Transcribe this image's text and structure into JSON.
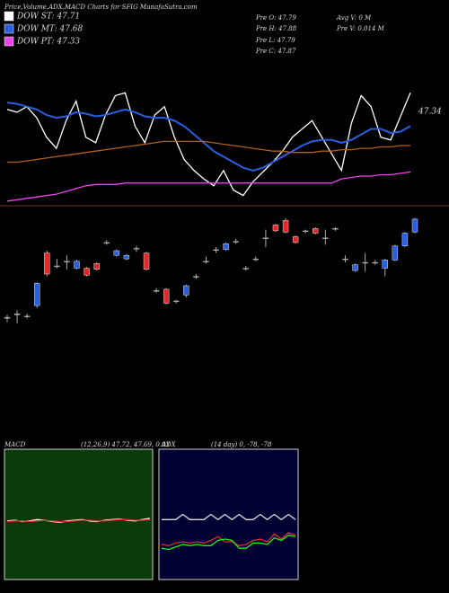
{
  "chart_data": [
    {
      "type": "line",
      "title": "Price,Volume,ADX,MACD Charts for SFIG MunafaSutra.com",
      "annotations": [
        "Pre O: 47.79",
        "Pre H: 47.88",
        "Pre L: 47.79",
        "Pre C: 47.87",
        "Avg V: 0 M",
        "Pre V: 0.014 M",
        "47.34"
      ],
      "ylim": [
        46.8,
        47.9
      ],
      "series": [
        {
          "name": "DOW ST: 47.71",
          "color": "#ffffff",
          "values": [
            47.5,
            47.48,
            47.52,
            47.44,
            47.3,
            47.22,
            47.42,
            47.56,
            47.3,
            47.26,
            47.46,
            47.6,
            47.62,
            47.38,
            47.26,
            47.46,
            47.52,
            47.3,
            47.14,
            47.06,
            47.0,
            46.95,
            47.06,
            46.92,
            46.88,
            46.98,
            47.05,
            47.12,
            47.2,
            47.3,
            47.36,
            47.42,
            47.3,
            47.18,
            47.06,
            47.4,
            47.6,
            47.52,
            47.3,
            47.28,
            47.45,
            47.62
          ]
        },
        {
          "name": "DOW MT: 47.68",
          "color": "#2a5fe0",
          "values": [
            47.55,
            47.54,
            47.52,
            47.5,
            47.46,
            47.44,
            47.45,
            47.48,
            47.47,
            47.45,
            47.46,
            47.48,
            47.5,
            47.48,
            47.45,
            47.44,
            47.44,
            47.42,
            47.38,
            47.32,
            47.26,
            47.2,
            47.16,
            47.12,
            47.08,
            47.06,
            47.08,
            47.12,
            47.16,
            47.2,
            47.24,
            47.27,
            47.28,
            47.28,
            47.26,
            47.28,
            47.32,
            47.36,
            47.36,
            47.33,
            47.34,
            47.38
          ]
        },
        {
          "name": "DOW PT: 47.33",
          "color": "#ee44ee",
          "values": [
            46.84,
            46.85,
            46.86,
            46.87,
            46.88,
            46.89,
            46.91,
            46.93,
            46.95,
            46.96,
            46.96,
            46.96,
            46.97,
            46.97,
            46.97,
            46.97,
            46.97,
            46.97,
            46.97,
            46.97,
            46.97,
            46.97,
            46.97,
            46.97,
            46.97,
            46.97,
            46.97,
            46.97,
            46.97,
            46.97,
            46.97,
            46.97,
            46.97,
            46.97,
            47.0,
            47.01,
            47.02,
            47.02,
            47.03,
            47.03,
            47.04,
            47.05
          ]
        },
        {
          "color": "#b0601a",
          "values": [
            47.12,
            47.12,
            47.13,
            47.14,
            47.15,
            47.16,
            47.17,
            47.18,
            47.19,
            47.2,
            47.21,
            47.22,
            47.23,
            47.24,
            47.25,
            47.26,
            47.27,
            47.27,
            47.27,
            47.27,
            47.27,
            47.26,
            47.25,
            47.24,
            47.23,
            47.22,
            47.21,
            47.2,
            47.2,
            47.19,
            47.19,
            47.19,
            47.2,
            47.2,
            47.21,
            47.21,
            47.22,
            47.22,
            47.23,
            47.23,
            47.24,
            47.24
          ]
        }
      ]
    },
    {
      "type": "candlestick",
      "ylim": [
        46.9,
        47.9
      ],
      "up_color": "#2a5fe0",
      "down_color": "#e02a2a",
      "open": [
        47.02,
        47.05,
        47.04,
        47.13,
        47.58,
        47.47,
        47.51,
        47.45,
        47.45,
        47.49,
        47.67,
        47.56,
        47.53,
        47.62,
        47.58,
        47.26,
        47.27,
        47.17,
        47.22,
        47.38,
        47.51,
        47.61,
        47.61,
        47.68,
        47.45,
        47.53,
        47.71,
        47.82,
        47.86,
        47.72,
        47.77,
        47.79,
        47.71,
        47.79,
        47.53,
        47.43,
        47.5,
        47.5,
        47.45,
        47.52,
        47.64,
        47.76
      ],
      "high": [
        47.05,
        47.09,
        47.06,
        47.33,
        47.6,
        47.53,
        47.56,
        47.52,
        47.46,
        47.5,
        47.69,
        47.61,
        47.57,
        47.64,
        47.59,
        47.28,
        47.28,
        47.18,
        47.31,
        47.4,
        47.55,
        47.63,
        47.67,
        47.7,
        47.47,
        47.55,
        47.78,
        47.83,
        47.88,
        47.73,
        47.78,
        47.8,
        47.78,
        47.8,
        47.56,
        47.49,
        47.58,
        47.52,
        47.53,
        47.65,
        47.76,
        47.88
      ],
      "low": [
        46.99,
        46.98,
        47.02,
        47.11,
        47.38,
        47.45,
        47.44,
        47.44,
        47.38,
        47.43,
        47.65,
        47.55,
        47.52,
        47.59,
        47.43,
        47.24,
        47.14,
        47.15,
        47.2,
        47.36,
        47.49,
        47.58,
        47.6,
        47.66,
        47.43,
        47.51,
        47.63,
        47.76,
        47.75,
        47.66,
        47.75,
        47.74,
        47.65,
        47.77,
        47.5,
        47.42,
        47.42,
        47.48,
        47.38,
        47.51,
        47.63,
        47.75
      ],
      "close": [
        47.03,
        47.06,
        47.04,
        47.32,
        47.4,
        47.47,
        47.51,
        47.51,
        47.39,
        47.44,
        47.67,
        47.6,
        47.56,
        47.62,
        47.44,
        47.26,
        47.15,
        47.17,
        47.3,
        47.38,
        47.51,
        47.61,
        47.66,
        47.68,
        47.45,
        47.53,
        47.71,
        47.77,
        47.76,
        47.67,
        47.77,
        47.75,
        47.71,
        47.79,
        47.53,
        47.48,
        47.5,
        47.5,
        47.52,
        47.64,
        47.75,
        47.87
      ]
    },
    {
      "type": "line",
      "title": "MACD",
      "subtitle": "(12,26,9) 47.72, 47.69, 0.03",
      "ylim": [
        -1,
        1
      ],
      "background": "#0b3a0b",
      "series": [
        {
          "color": "#ffffff",
          "values": [
            -0.1,
            -0.09,
            -0.11,
            -0.1,
            -0.08,
            -0.09,
            -0.11,
            -0.12,
            -0.1,
            -0.09,
            -0.08,
            -0.1,
            -0.11,
            -0.09,
            -0.08,
            -0.07,
            -0.09,
            -0.1,
            -0.08,
            -0.06
          ]
        },
        {
          "color": "#e02a2a",
          "values": [
            -0.11,
            -0.1,
            -0.1,
            -0.11,
            -0.1,
            -0.09,
            -0.1,
            -0.11,
            -0.11,
            -0.1,
            -0.09,
            -0.09,
            -0.1,
            -0.1,
            -0.09,
            -0.08,
            -0.08,
            -0.09,
            -0.09,
            -0.08
          ]
        }
      ]
    },
    {
      "type": "line",
      "title": "ADX",
      "subtitle": "(14 day) 0, -78, -78",
      "ylim": [
        0,
        100
      ],
      "background": "#000033",
      "series": [
        {
          "color": "#dddddd",
          "values": [
            46,
            46,
            46,
            50,
            46,
            46,
            46,
            50,
            46,
            50,
            46,
            50,
            46,
            46,
            50,
            46,
            50,
            46,
            50,
            46
          ]
        },
        {
          "color": "#e02a2a",
          "values": [
            27,
            26,
            28,
            29,
            28,
            29,
            28,
            30,
            33,
            29,
            29,
            26,
            27,
            30,
            31,
            29,
            35,
            31,
            36,
            34
          ]
        },
        {
          "color": "#22ee22",
          "values": [
            24,
            23,
            25,
            27,
            26,
            27,
            26,
            26,
            30,
            31,
            30,
            24,
            24,
            28,
            28,
            27,
            32,
            30,
            34,
            33
          ]
        }
      ]
    }
  ]
}
